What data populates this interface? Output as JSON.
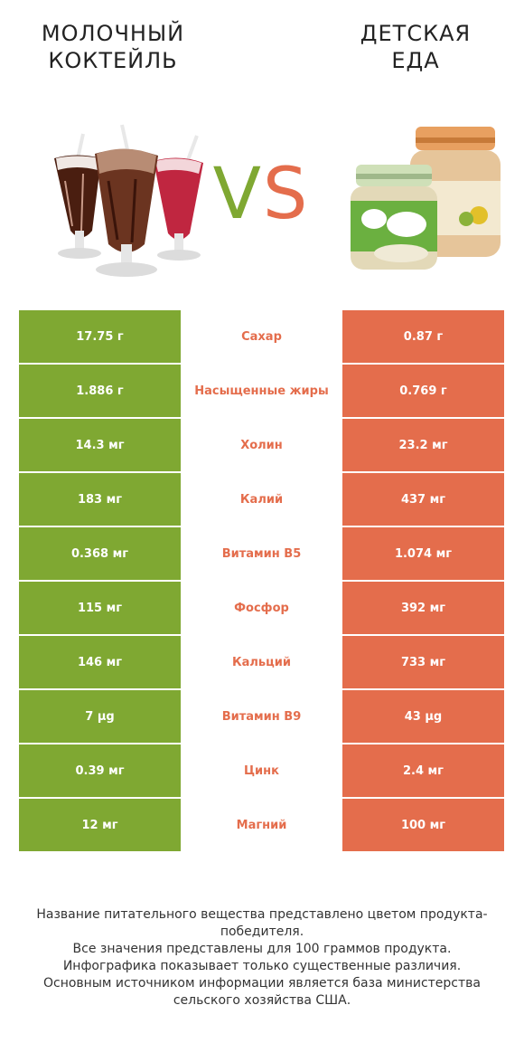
{
  "header": {
    "left_title_line1": "МОЛОЧНЫЙ",
    "left_title_line2": "КОКТЕЙЛЬ",
    "right_title_line1": "ДЕТСКАЯ",
    "right_title_line2": "ЕДА",
    "vs_v": "V",
    "vs_s": "S"
  },
  "colors": {
    "left_winner": "#7fa832",
    "right_winner": "#e46d4c"
  },
  "chart_data": {
    "type": "table",
    "series_left": "Молочный коктейль",
    "series_right": "Детская еда",
    "rows": [
      {
        "nutrient": "Сахар",
        "left": "17.75 г",
        "right": "0.87 г",
        "winner": "right"
      },
      {
        "nutrient": "Насыщенные жиры",
        "left": "1.886 г",
        "right": "0.769 г",
        "winner": "right"
      },
      {
        "nutrient": "Холин",
        "left": "14.3 мг",
        "right": "23.2 мг",
        "winner": "right"
      },
      {
        "nutrient": "Калий",
        "left": "183 мг",
        "right": "437 мг",
        "winner": "right"
      },
      {
        "nutrient": "Витамин B5",
        "left": "0.368 мг",
        "right": "1.074 мг",
        "winner": "right"
      },
      {
        "nutrient": "Фосфор",
        "left": "115 мг",
        "right": "392 мг",
        "winner": "right"
      },
      {
        "nutrient": "Кальций",
        "left": "146 мг",
        "right": "733 мг",
        "winner": "right"
      },
      {
        "nutrient": "Витамин B9",
        "left": "7 µg",
        "right": "43 µg",
        "winner": "right"
      },
      {
        "nutrient": "Цинк",
        "left": "0.39 мг",
        "right": "2.4 мг",
        "winner": "right"
      },
      {
        "nutrient": "Магний",
        "left": "12 мг",
        "right": "100 мг",
        "winner": "right"
      }
    ]
  },
  "footnote": {
    "line1": "Название питательного вещества представлено цветом продукта-победителя.",
    "line2": "Все значения представлены для 100 граммов продукта.",
    "line3": "Инфографика показывает только существенные различия.",
    "line4": "Основным источником информации является база министерства сельского хозяйства США."
  }
}
